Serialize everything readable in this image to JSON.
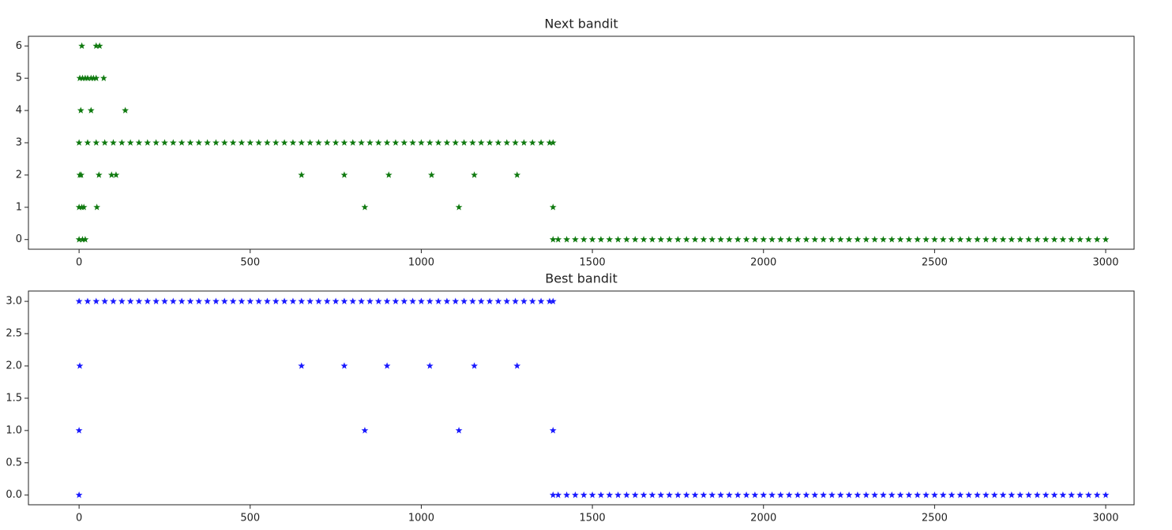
{
  "chart_data": [
    {
      "type": "scatter",
      "title": "Next bandit",
      "marker": "star",
      "xlim": [
        -148,
        3083
      ],
      "xticks": [
        0,
        500,
        1000,
        1500,
        2000,
        2500,
        3000
      ],
      "ylim": [
        -0.3,
        6.3
      ],
      "yticks": [
        0,
        1,
        2,
        3,
        4,
        5,
        6
      ],
      "series": [
        {
          "color": "#107a10",
          "x": [
            0,
            25,
            50,
            75,
            100,
            125,
            150,
            175,
            200,
            225,
            250,
            275,
            300,
            325,
            350,
            375,
            400,
            425,
            450,
            475,
            500,
            525,
            550,
            575,
            600,
            625,
            650,
            675,
            700,
            725,
            750,
            775,
            800,
            825,
            850,
            875,
            900,
            925,
            950,
            975,
            1000,
            1025,
            1050,
            1075,
            1100,
            1125,
            1150,
            1175,
            1200,
            1225,
            1250,
            1275,
            1300,
            1325,
            1350,
            1375,
            1385
          ],
          "values": [
            3,
            3,
            3,
            3,
            3,
            3,
            3,
            3,
            3,
            3,
            3,
            3,
            3,
            3,
            3,
            3,
            3,
            3,
            3,
            3,
            3,
            3,
            3,
            3,
            3,
            3,
            3,
            3,
            3,
            3,
            3,
            3,
            3,
            3,
            3,
            3,
            3,
            3,
            3,
            3,
            3,
            3,
            3,
            3,
            3,
            3,
            3,
            3,
            3,
            3,
            3,
            3,
            3,
            3,
            3,
            3,
            3
          ]
        },
        {
          "color": "#107a10",
          "x": [
            1385,
            1400,
            1425,
            1450,
            1475,
            1500,
            1525,
            1550,
            1575,
            1600,
            1625,
            1650,
            1675,
            1700,
            1725,
            1750,
            1775,
            1800,
            1825,
            1850,
            1875,
            1900,
            1925,
            1950,
            1975,
            2000,
            2025,
            2050,
            2075,
            2100,
            2125,
            2150,
            2175,
            2200,
            2225,
            2250,
            2275,
            2300,
            2325,
            2350,
            2375,
            2400,
            2425,
            2450,
            2475,
            2500,
            2525,
            2550,
            2575,
            2600,
            2625,
            2650,
            2675,
            2700,
            2725,
            2750,
            2775,
            2800,
            2825,
            2850,
            2875,
            2900,
            2925,
            2950,
            2975,
            3000
          ],
          "values": [
            0,
            0,
            0,
            0,
            0,
            0,
            0,
            0,
            0,
            0,
            0,
            0,
            0,
            0,
            0,
            0,
            0,
            0,
            0,
            0,
            0,
            0,
            0,
            0,
            0,
            0,
            0,
            0,
            0,
            0,
            0,
            0,
            0,
            0,
            0,
            0,
            0,
            0,
            0,
            0,
            0,
            0,
            0,
            0,
            0,
            0,
            0,
            0,
            0,
            0,
            0,
            0,
            0,
            0,
            0,
            0,
            0,
            0,
            0,
            0,
            0,
            0,
            0,
            0,
            0,
            0
          ]
        },
        {
          "color": "#107a10",
          "x": [
            0,
            10,
            18,
            0,
            8,
            14,
            52,
            2,
            6,
            58,
            95,
            108,
            650,
            775,
            905,
            1030,
            1155,
            1280,
            835,
            1110,
            1385,
            5,
            35,
            135,
            2,
            10,
            18,
            25,
            35,
            42,
            50,
            72,
            8,
            50,
            60
          ],
          "values": [
            0,
            0,
            0,
            1,
            1,
            1,
            1,
            2,
            2,
            2,
            2,
            2,
            2,
            2,
            2,
            2,
            2,
            2,
            1,
            1,
            1,
            4,
            4,
            4,
            5,
            5,
            5,
            5,
            5,
            5,
            5,
            5,
            6,
            6,
            6
          ]
        }
      ]
    },
    {
      "type": "scatter",
      "title": "Best bandit",
      "marker": "star",
      "xlim": [
        -148,
        3083
      ],
      "xticks": [
        0,
        500,
        1000,
        1500,
        2000,
        2500,
        3000
      ],
      "ylim": [
        -0.15,
        3.16
      ],
      "yticks": [
        {
          "value": 0,
          "label": "0.0"
        },
        0.5,
        {
          "value": 1,
          "label": "1.0"
        },
        1.5,
        {
          "value": 2,
          "label": "2.0"
        },
        2.5,
        {
          "value": 3,
          "label": "3.0"
        }
      ],
      "series": [
        {
          "color": "#1a1aff",
          "x": [
            0,
            25,
            50,
            75,
            100,
            125,
            150,
            175,
            200,
            225,
            250,
            275,
            300,
            325,
            350,
            375,
            400,
            425,
            450,
            475,
            500,
            525,
            550,
            575,
            600,
            625,
            650,
            675,
            700,
            725,
            750,
            775,
            800,
            825,
            850,
            875,
            900,
            925,
            950,
            975,
            1000,
            1025,
            1050,
            1075,
            1100,
            1125,
            1150,
            1175,
            1200,
            1225,
            1250,
            1275,
            1300,
            1325,
            1350,
            1375,
            1385
          ],
          "values": [
            3,
            3,
            3,
            3,
            3,
            3,
            3,
            3,
            3,
            3,
            3,
            3,
            3,
            3,
            3,
            3,
            3,
            3,
            3,
            3,
            3,
            3,
            3,
            3,
            3,
            3,
            3,
            3,
            3,
            3,
            3,
            3,
            3,
            3,
            3,
            3,
            3,
            3,
            3,
            3,
            3,
            3,
            3,
            3,
            3,
            3,
            3,
            3,
            3,
            3,
            3,
            3,
            3,
            3,
            3,
            3,
            3
          ]
        },
        {
          "color": "#1a1aff",
          "x": [
            1385,
            1400,
            1425,
            1450,
            1475,
            1500,
            1525,
            1550,
            1575,
            1600,
            1625,
            1650,
            1675,
            1700,
            1725,
            1750,
            1775,
            1800,
            1825,
            1850,
            1875,
            1900,
            1925,
            1950,
            1975,
            2000,
            2025,
            2050,
            2075,
            2100,
            2125,
            2150,
            2175,
            2200,
            2225,
            2250,
            2275,
            2300,
            2325,
            2350,
            2375,
            2400,
            2425,
            2450,
            2475,
            2500,
            2525,
            2550,
            2575,
            2600,
            2625,
            2650,
            2675,
            2700,
            2725,
            2750,
            2775,
            2800,
            2825,
            2850,
            2875,
            2900,
            2925,
            2950,
            2975,
            3000
          ],
          "values": [
            0,
            0,
            0,
            0,
            0,
            0,
            0,
            0,
            0,
            0,
            0,
            0,
            0,
            0,
            0,
            0,
            0,
            0,
            0,
            0,
            0,
            0,
            0,
            0,
            0,
            0,
            0,
            0,
            0,
            0,
            0,
            0,
            0,
            0,
            0,
            0,
            0,
            0,
            0,
            0,
            0,
            0,
            0,
            0,
            0,
            0,
            0,
            0,
            0,
            0,
            0,
            0,
            0,
            0,
            0,
            0,
            0,
            0,
            0,
            0,
            0,
            0,
            0,
            0,
            0,
            0
          ]
        },
        {
          "color": "#1a1aff",
          "x": [
            0,
            0,
            2,
            650,
            775,
            900,
            1025,
            1155,
            1280,
            835,
            1110,
            1385
          ],
          "values": [
            0,
            1,
            2,
            2,
            2,
            2,
            2,
            2,
            2,
            1,
            1,
            1
          ]
        }
      ]
    }
  ]
}
